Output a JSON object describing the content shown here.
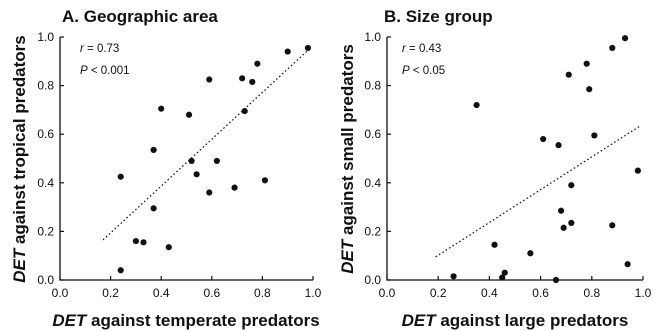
{
  "chart_data": [
    {
      "type": "scatter",
      "title": "A. Geographic area",
      "xlabel_em": "DET",
      "xlabel_rest": " against temperate predators",
      "ylabel_em": "DET",
      "ylabel_rest": " against tropical predators",
      "xlim": [
        0.0,
        1.0
      ],
      "ylim": [
        0.0,
        1.0
      ],
      "xticks": [
        "0.0",
        "0.2",
        "0.4",
        "0.6",
        "0.8",
        "1.0"
      ],
      "yticks": [
        "0.0",
        "0.2",
        "0.4",
        "0.6",
        "0.8",
        "1.0"
      ],
      "stat_r_sym": "r",
      "stat_r_val": " = 0.73",
      "stat_p_sym": "P",
      "stat_p_val": " < 0.001",
      "fit_line": [
        [
          0.17,
          0.165
        ],
        [
          0.99,
          0.955
        ]
      ],
      "points": [
        [
          0.24,
          0.04
        ],
        [
          0.24,
          0.425
        ],
        [
          0.3,
          0.16
        ],
        [
          0.33,
          0.155
        ],
        [
          0.37,
          0.535
        ],
        [
          0.37,
          0.295
        ],
        [
          0.4,
          0.705
        ],
        [
          0.43,
          0.135
        ],
        [
          0.51,
          0.68
        ],
        [
          0.52,
          0.49
        ],
        [
          0.54,
          0.435
        ],
        [
          0.59,
          0.825
        ],
        [
          0.59,
          0.36
        ],
        [
          0.62,
          0.49
        ],
        [
          0.69,
          0.38
        ],
        [
          0.72,
          0.83
        ],
        [
          0.73,
          0.695
        ],
        [
          0.76,
          0.815
        ],
        [
          0.78,
          0.89
        ],
        [
          0.81,
          0.41
        ],
        [
          0.9,
          0.94
        ],
        [
          0.98,
          0.955
        ]
      ]
    },
    {
      "type": "scatter",
      "title": "B. Size group",
      "xlabel_em": "DET",
      "xlabel_rest": " against large predators",
      "ylabel_em": "DET",
      "ylabel_rest": " against small predators",
      "xlim": [
        0.0,
        1.0
      ],
      "ylim": [
        0.0,
        1.0
      ],
      "xticks": [
        "0.0",
        "0.2",
        "0.4",
        "0.6",
        "0.8",
        "1.0"
      ],
      "yticks": [
        "0.0",
        "0.2",
        "0.4",
        "0.6",
        "0.8",
        "1.0"
      ],
      "stat_r_sym": "r",
      "stat_r_val": " = 0.43",
      "stat_p_sym": "P",
      "stat_p_val": " < 0.05",
      "fit_line": [
        [
          0.19,
          0.095
        ],
        [
          0.99,
          0.635
        ]
      ],
      "points": [
        [
          0.26,
          0.015
        ],
        [
          0.35,
          0.72
        ],
        [
          0.42,
          0.145
        ],
        [
          0.45,
          0.01
        ],
        [
          0.46,
          0.03
        ],
        [
          0.56,
          0.11
        ],
        [
          0.61,
          0.58
        ],
        [
          0.66,
          0.0
        ],
        [
          0.67,
          0.555
        ],
        [
          0.68,
          0.285
        ],
        [
          0.69,
          0.215
        ],
        [
          0.71,
          0.845
        ],
        [
          0.72,
          0.235
        ],
        [
          0.72,
          0.39
        ],
        [
          0.78,
          0.89
        ],
        [
          0.79,
          0.785
        ],
        [
          0.81,
          0.595
        ],
        [
          0.88,
          0.955
        ],
        [
          0.88,
          0.225
        ],
        [
          0.93,
          0.995
        ],
        [
          0.94,
          0.065
        ],
        [
          0.98,
          0.45
        ]
      ]
    }
  ]
}
